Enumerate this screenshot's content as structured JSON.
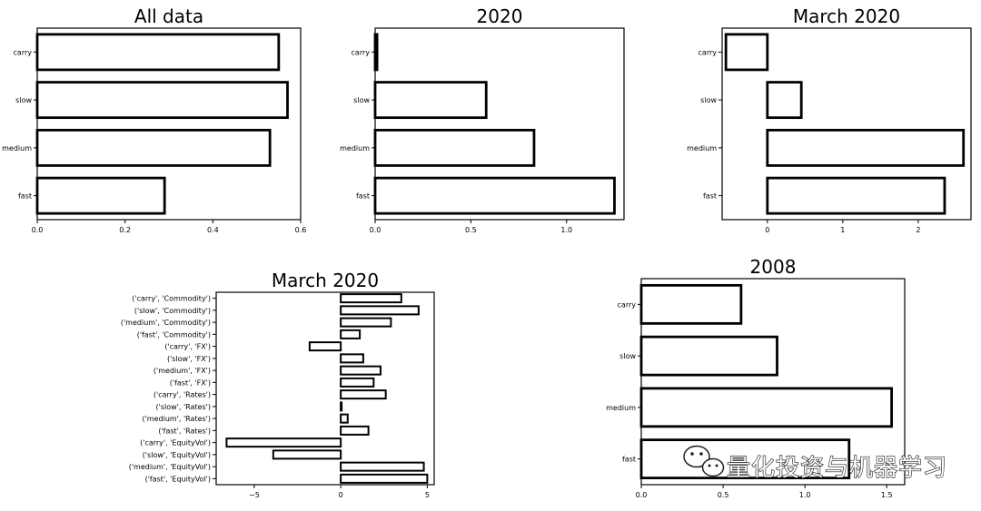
{
  "chart_data": [
    {
      "type": "bar",
      "orientation": "horizontal",
      "title": "All data",
      "categories": [
        "carry",
        "slow",
        "medium",
        "fast"
      ],
      "values": [
        0.55,
        0.57,
        0.53,
        0.29
      ],
      "xlim": [
        0,
        0.6
      ],
      "xticks": [
        0,
        0.2,
        0.4,
        0.6
      ],
      "xtick_labels": [
        "0.0",
        "0.2",
        "0.4",
        "0.6"
      ]
    },
    {
      "type": "bar",
      "orientation": "horizontal",
      "title": "2020",
      "categories": [
        "carry",
        "slow",
        "medium",
        "fast"
      ],
      "values": [
        0.01,
        0.58,
        0.83,
        1.25
      ],
      "xlim": [
        0,
        1.3
      ],
      "xticks": [
        0,
        0.5,
        1.0
      ],
      "xtick_labels": [
        "0.0",
        "0.5",
        "1.0"
      ]
    },
    {
      "type": "bar",
      "orientation": "horizontal",
      "title": "March 2020",
      "categories": [
        "carry",
        "slow",
        "medium",
        "fast"
      ],
      "values": [
        -0.55,
        0.45,
        2.6,
        2.35
      ],
      "xlim": [
        -0.6,
        2.7
      ],
      "xticks": [
        0,
        1,
        2
      ],
      "xtick_labels": [
        "0",
        "1",
        "2"
      ]
    },
    {
      "type": "bar",
      "orientation": "horizontal",
      "title": "March 2020",
      "categories": [
        "('carry', 'Commodity')",
        "('slow', 'Commodity')",
        "('medium', 'Commodity')",
        "('fast', 'Commodity')",
        "('carry', 'FX')",
        "('slow', 'FX')",
        "('medium', 'FX')",
        "('fast', 'FX')",
        "('carry', 'Rates')",
        "('slow', 'Rates')",
        "('medium', 'Rates')",
        "('fast', 'Rates')",
        "('carry', 'EquityVol')",
        "('slow', 'EquityVol')",
        "('medium', 'EquityVol')",
        "('fast', 'EquityVol')"
      ],
      "values": [
        3.5,
        4.5,
        2.9,
        1.1,
        -1.8,
        1.3,
        2.3,
        1.9,
        2.6,
        0.05,
        0.4,
        1.6,
        -6.6,
        -3.9,
        4.8,
        5.0
      ],
      "xlim": [
        -7.2,
        5.4
      ],
      "xticks": [
        -5,
        0,
        5
      ],
      "xtick_labels": [
        "−5",
        "0",
        "5"
      ]
    },
    {
      "type": "bar",
      "orientation": "horizontal",
      "title": "2008",
      "categories": [
        "carry",
        "slow",
        "medium",
        "fast"
      ],
      "values": [
        0.61,
        0.83,
        1.53,
        1.27
      ],
      "xlim": [
        0,
        1.61
      ],
      "xticks": [
        0,
        0.5,
        1.0,
        1.5
      ],
      "xtick_labels": [
        "0.0",
        "0.5",
        "1.0",
        "1.5"
      ]
    }
  ],
  "watermark": {
    "text": "量化投资与机器学习",
    "icon": "wechat-icon"
  }
}
